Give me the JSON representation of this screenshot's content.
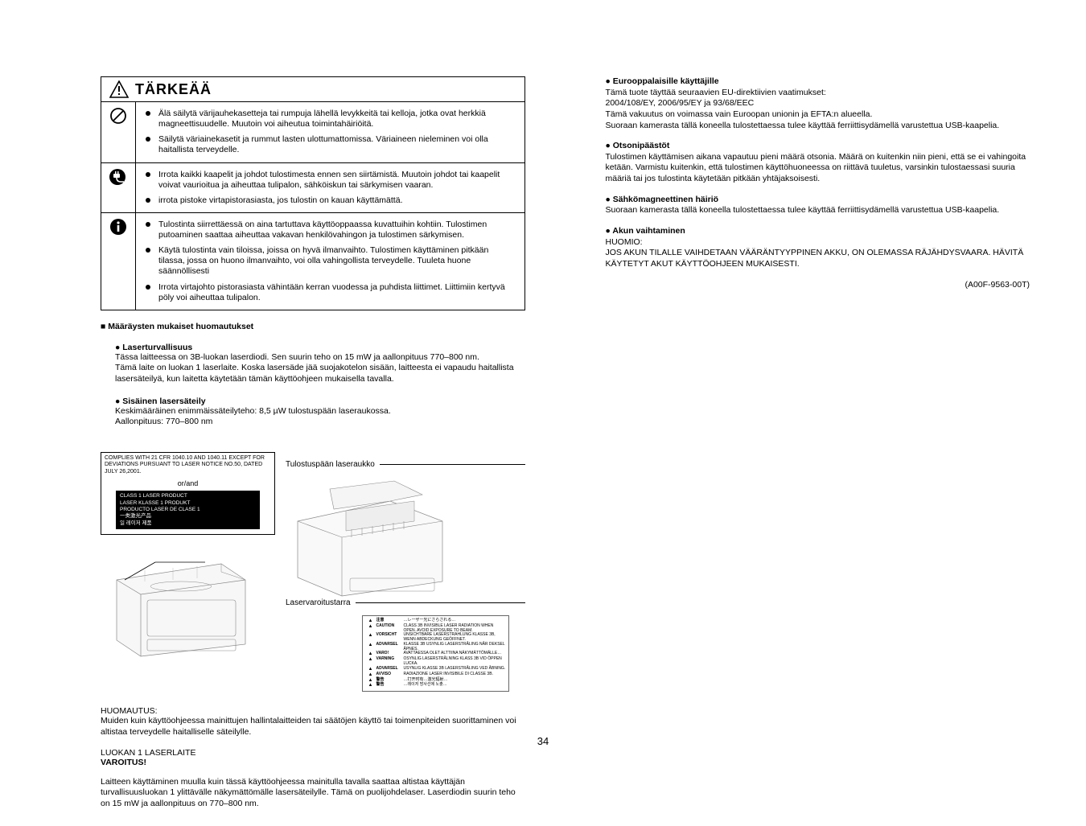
{
  "page_number": "34",
  "doc_ref": "(A00F-9563-00T)",
  "warnbox": {
    "title": "TÄRKEÄÄ",
    "rows": [
      {
        "icon": "prohibit",
        "bullets": [
          "Älä säilytä värijauhekasetteja tai rumpuja lähellä levykkeitä tai kelloja, jotka ovat herkkiä magneettisuudelle. Muutoin voi aiheutua toimintahäiriöitä.",
          "Säilytä väriainekasetit ja rummut lasten ulottumattomissa. Väriaineen nieleminen voi olla haitallista terveydelle."
        ]
      },
      {
        "icon": "unplug",
        "bullets": [
          "Irrota kaikki kaapelit ja johdot tulostimesta ennen sen siirtämistä. Muutoin johdot tai kaapelit voivat vaurioitua ja aiheuttaa tulipalon, sähköiskun tai särkymisen vaaran.",
          "irrota pistoke virtapistorasiasta, jos tulostin on kauan käyttämättä."
        ]
      },
      {
        "icon": "info",
        "bullets": [
          "Tulostinta siirrettäessä on aina tartuttava käyttöoppaassa kuvattuihin kohtiin. Tulostimen putoaminen saattaa aiheuttaa vakavan henkilövahingon ja tulostimen särkymisen.",
          "Käytä tulostinta vain tiloissa, joissa on hyvä ilmanvaihto. Tulostimen käyttäminen pitkään tilassa, jossa on huono ilmanvaihto, voi olla vahingollista terveydelle. Tuuleta huone säännöllisesti",
          "Irrota virtajohto pistorasiasta vähintään kerran vuodessa ja puhdista liittimet. Liittimiin kertyvä pöly voi aiheuttaa tulipalon."
        ]
      }
    ]
  },
  "regs": {
    "heading": "■ Määräysten mukaiset huomautukset",
    "laser_head": "● Laserturvallisuus",
    "laser_body": "Tässa laitteessa on 3B-luokan laserdiodi. Sen suurin teho on 15 mW ja aallonpituus 770–800 nm.\nTämä laite on luokan 1 laserlaite. Koska lasersäde jää suojakotelon sisään, laitteesta ei vapaudu haitallista lasersäteilyä, kun laitetta käytetään tämän käyttöohjeen mukaisella tavalla.",
    "internal_head": "● Sisäinen lasersäteily",
    "internal_body": "Keskimääräinen enimmäissäteilyteho: 8,5 µW tulostuspään laseraukossa.\nAallonpituus: 770–800 nm"
  },
  "labels": {
    "compliance": "COMPLIES WITH 21 CFR 1040.10 AND 1040.11 EXCEPT FOR DEVIATIONS PURSUANT TO LASER NOTICE NO.50, DATED JULY 26,2001.",
    "orand": "or/and",
    "class1": "CLASS 1 LASER PRODUCT\nLASER KLASSE 1 PRODUKT\nPRODUCTO LASER DE CLASE 1\n一类激光产品\n일 레이저 제품",
    "aperture": "Tulostuspään laseraukko",
    "sticker": "Laservaroitustarra"
  },
  "caution": {
    "head": "HUOMAUTUS:",
    "body": "Muiden kuin käyttöohjeessa mainittujen hallintalaitteiden tai säätöjen käyttö tai toimenpiteiden suorittaminen voi altistaa terveydelle haitalliselle säteilylle.",
    "lk1": "LUOKAN 1 LASERLAITE",
    "varo": "VAROITUS!",
    "varo_body": "Laitteen käyttäminen muulla kuin tässä käyttöohjeessa mainitulla tavalla saattaa altistaa käyttäjän turvallisuusluokan 1 ylittävälle näkymättömälle lasersäteilylle. Tämä on puolijohdelaser.  Laserdiodin suurin teho on 15 mW ja aallonpituus on 770–800 nm."
  },
  "right": {
    "eu_head": "● Eurooppalaisille käyttäjille",
    "eu_body": "Tämä tuote täyttää seuraavien EU-direktiivien vaatimukset:\n2004/108/EY, 2006/95/EY ja 93/68/EEC\nTämä vakuutus on voimassa vain Euroopan unionin ja EFTA:n alueella.\nSuoraan kamerasta tällä koneella tulostettaessa tulee käyttää ferriittisydämellä varustettua USB-kaapelia.",
    "ozone_head": "● Otsonipäästöt",
    "ozone_body": "Tulostimen käyttämisen aikana vapautuu pieni määrä otsonia. Määrä on kuitenkin niin pieni, että se ei vahingoita ketään. Varmistu kuitenkin, että tulostimen käyttöhuoneessa on riittävä tuuletus, varsinkin tulostaessasi suuria määriä tai jos tulostinta käytetään pitkään yhtäjaksoisesti.",
    "emi_head": "● Sähkömagneettinen häiriö",
    "emi_body": "Suoraan kamerasta tällä koneella tulostettaessa tulee käyttää ferriittisydämellä varustettua USB-kaapelia.",
    "bat_head": "● Akun vaihtaminen",
    "bat_sub": "HUOMIO:",
    "bat_body": "JOS AKUN TILALLE VAIHDETAAN VÄÄRÄNTYYPPINEN AKKU, ON OLEMASSA RÄJÄHDYSVAARA. HÄVITÄ KÄYTETYT AKUT KÄYTTÖOHJEEN MUKAISESTI."
  },
  "sticker_lines": [
    [
      "▲",
      "注意",
      "…レーザー光にさらされる…"
    ],
    [
      "▲",
      "CAUTION",
      "CLASS 3B INVISIBLE LASER RADIATION WHEN OPEN. AVOID EXPOSURE TO BEAM."
    ],
    [
      "▲",
      "VORSICHT",
      "UNSICHTBARE LASERSTRAHLUNG KLASSE 3B, WENN ABDECKUNG GEÖFFNET."
    ],
    [
      "▲",
      "ADVARSEL",
      "KLASSE 3B USYNLIG LASERSTRÅLING NÅR DEKSEL ÅPNES."
    ],
    [
      "▲",
      "VARO!",
      "AVATTAESSA OLET ALTTIINA NÄKYMÄTTÖMÄLLE…"
    ],
    [
      "▲",
      "VARNING",
      "OSYNLIG LASERSTRÅLNING KLASS 3B VID ÖPPEN LUCKA."
    ],
    [
      "▲",
      "ADVARSEL",
      "USYNLIG KLASSE 3B LASERSTRÅLING VED ÅBNING."
    ],
    [
      "▲",
      "AVVISO",
      "RADIAZIONE LASER INVISIBILE DI CLASSE 3B."
    ],
    [
      "▲",
      "警告",
      "…打开时有…激光辐射…"
    ],
    [
      "▲",
      "警告",
      "…레이저 방사선에 노출…"
    ]
  ]
}
